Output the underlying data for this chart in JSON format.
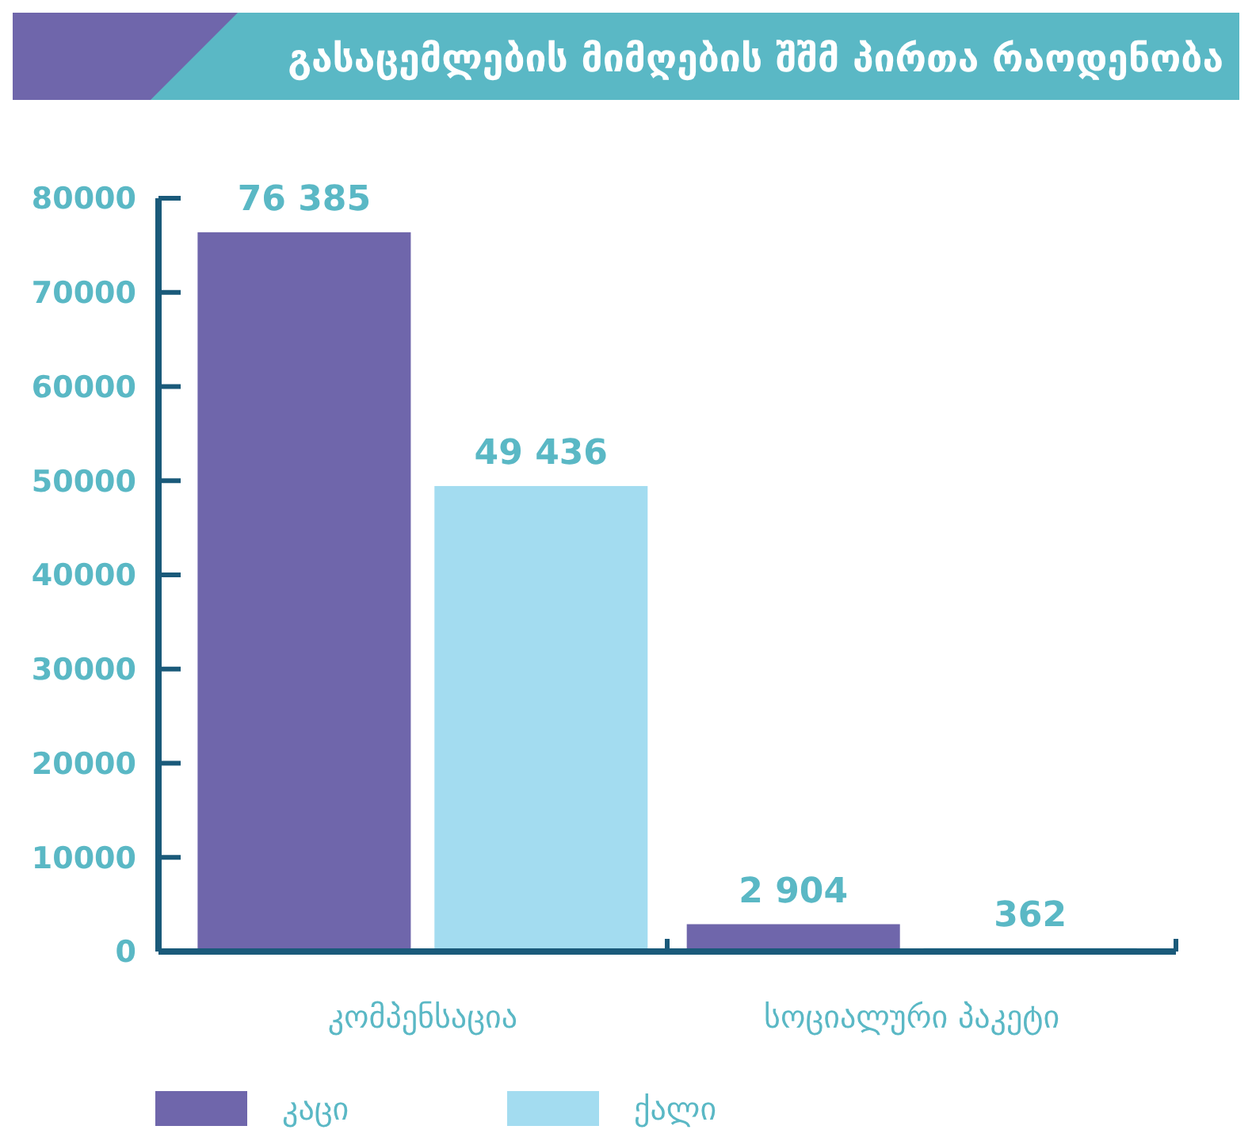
{
  "chart_data": {
    "type": "bar",
    "title": "გასაცემლების მიმღების შშმ პირთა რაოდენობა",
    "categories": [
      "კომპენსაცია",
      "სოციალური პაკეტი"
    ],
    "series": [
      {
        "name": "კაცი",
        "color": "#6f66ab",
        "values": [
          76385,
          2904
        ],
        "value_labels": [
          "76 385",
          "2 904"
        ]
      },
      {
        "name": "ქალი",
        "color": "#a3dcf0",
        "values": [
          49436,
          362
        ],
        "value_labels": [
          "49 436",
          "362"
        ]
      }
    ],
    "ylim": [
      0,
      80000
    ],
    "yticks": [
      0,
      10000,
      20000,
      30000,
      40000,
      50000,
      60000,
      70000,
      80000
    ],
    "grid": false,
    "legend": "bottom"
  }
}
